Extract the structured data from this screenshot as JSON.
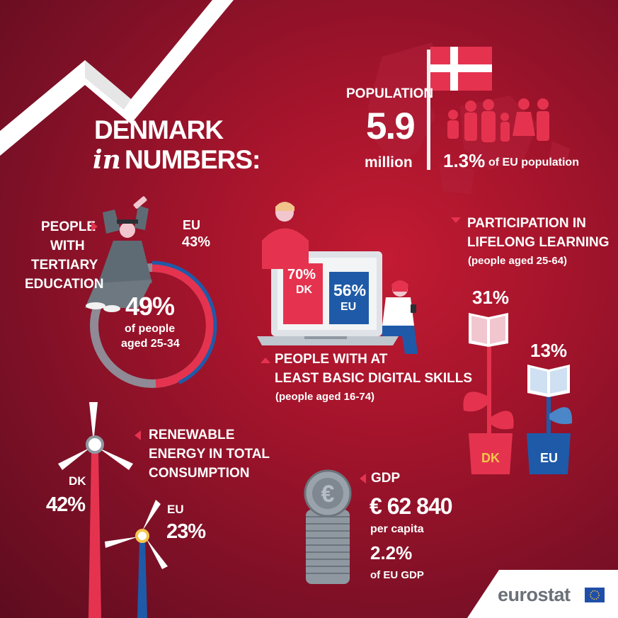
{
  "title": {
    "line1": "DENMARK",
    "in": "in",
    "line2": "NUMBERS:"
  },
  "population": {
    "label": "POPULATION",
    "value": "5.9",
    "unit": "million",
    "share": "1.3%",
    "share_label": "of EU population"
  },
  "tertiary": {
    "label_lines": [
      "PEOPLE",
      "WITH",
      "TERTIARY",
      "EDUCATION"
    ],
    "eu_label": "EU",
    "eu_value": "43%",
    "dk_value": "49%",
    "note_lines": [
      "of people",
      "aged 25-34"
    ],
    "dk_fraction": 0.49,
    "eu_fraction": 0.43
  },
  "digital": {
    "dk_value": "70%",
    "dk_label": "DK",
    "eu_value": "56%",
    "eu_label": "EU",
    "label_lines": [
      "PEOPLE WITH AT",
      "LEAST BASIC DIGITAL SKILLS"
    ],
    "note": "(people aged 16-74)"
  },
  "lifelong": {
    "label_lines": [
      "PARTICIPATION IN",
      "LIFELONG LEARNING"
    ],
    "note": "(people aged 25-64)",
    "dk_value": "31%",
    "eu_value": "13%",
    "dk_label": "DK",
    "eu_label": "EU"
  },
  "renewable": {
    "label_lines": [
      "RENEWABLE",
      "ENERGY IN TOTAL",
      "CONSUMPTION"
    ],
    "dk_label": "DK",
    "dk_value": "42%",
    "eu_label": "EU",
    "eu_value": "23%"
  },
  "gdp": {
    "label": "GDP",
    "value": "€ 62 840",
    "per": "per capita",
    "share": "2.2%",
    "share_label": "of EU GDP"
  },
  "brand": {
    "name": "eurostat"
  },
  "colors": {
    "red": "#e5334f",
    "blue": "#1f5aa8",
    "dark_blue": "#173f7e",
    "gray": "#8f98a1",
    "pink": "#f2c6ce",
    "dark": "#6b0f22"
  }
}
